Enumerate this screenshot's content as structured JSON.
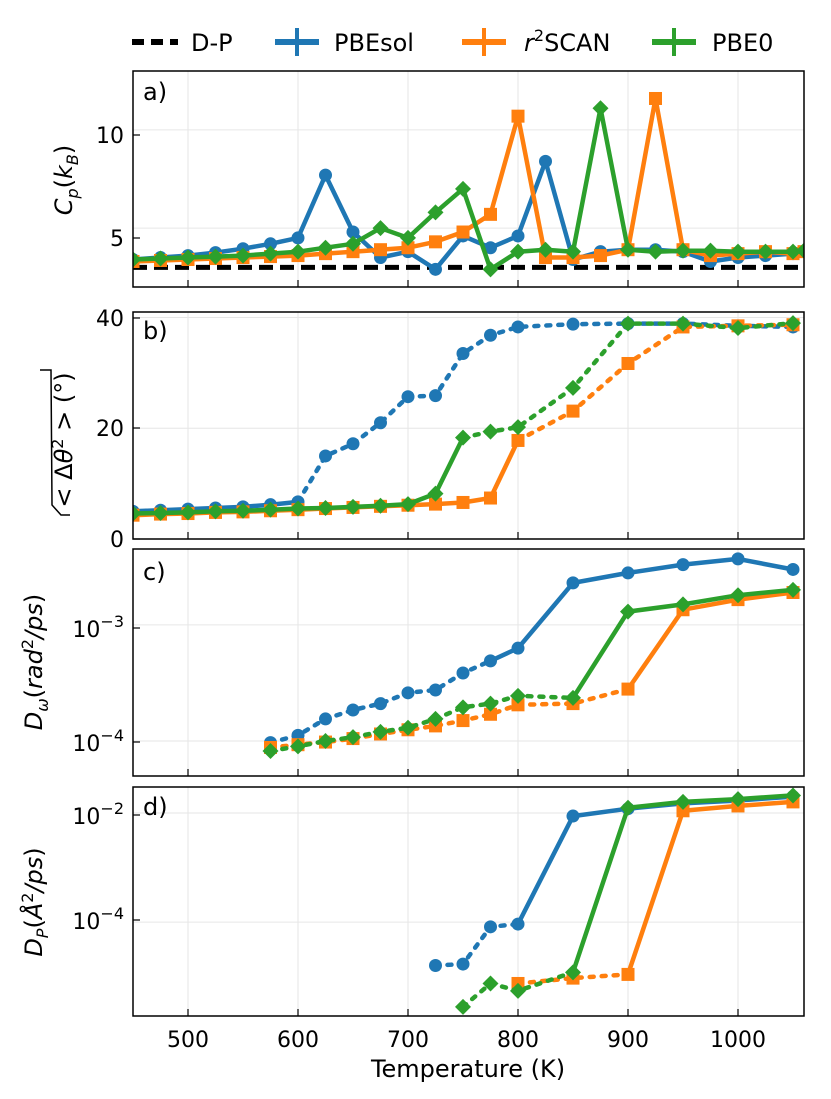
{
  "colors": {
    "pbesol": "#1f77b4",
    "r2scan": "#ff7f0e",
    "pbe0": "#2ca02c",
    "dp": "#000000",
    "grid": "#e6e6e6"
  },
  "legend": {
    "dp": "D-P",
    "pbesol": "PBEsol",
    "r2scan_pre": "r",
    "r2scan_sup": "2",
    "r2scan_post": "SCAN",
    "pbe0": "PBE0"
  },
  "xaxis": {
    "label": "Temperature (K)",
    "ticks": [
      500,
      600,
      700,
      800,
      900,
      1000
    ],
    "tick_labels": [
      "500",
      "600",
      "700",
      "800",
      "900",
      "1000"
    ]
  },
  "panels": {
    "a": {
      "tag": "a)",
      "ylabel": "C_p(k_B)",
      "tick_labels": [
        "5",
        "10"
      ]
    },
    "b": {
      "tag": "b)",
      "ylabel": "√<Δθ²> (°)",
      "tick_labels": [
        "0",
        "20",
        "40"
      ]
    },
    "c": {
      "tag": "c)",
      "ylabel": "D_ω(rad²/ps)",
      "tick_base": "10",
      "tick_exps": [
        "−4",
        "−3"
      ]
    },
    "d": {
      "tag": "d)",
      "ylabel": "D_P(Å²/ps)",
      "tick_base": "10",
      "tick_exps": [
        "−4",
        "−2"
      ]
    }
  },
  "chart_data": [
    {
      "id": "a",
      "type": "line",
      "title": "",
      "xlabel": "",
      "ylabel": "C_p(k_B)",
      "xlim": [
        450,
        1060
      ],
      "ylim": [
        2,
        13
      ],
      "yticks": [
        5,
        10
      ],
      "grid": true,
      "reference": {
        "name": "D-P",
        "value": 3,
        "style": "dashed"
      },
      "series": [
        {
          "name": "PBEsol",
          "key": "pbesol",
          "marker": "circle",
          "x": [
            450,
            475,
            500,
            525,
            550,
            575,
            600,
            625,
            650,
            675,
            700,
            725,
            750,
            775,
            800,
            825,
            850,
            875,
            900,
            925,
            950,
            975,
            1000,
            1025,
            1050,
            1060
          ],
          "y": [
            3.4,
            3.5,
            3.6,
            3.75,
            3.95,
            4.2,
            4.5,
            7.7,
            4.8,
            3.5,
            3.8,
            2.9,
            4.6,
            4.0,
            4.6,
            8.4,
            3.4,
            3.8,
            3.9,
            3.9,
            3.8,
            3.3,
            3.5,
            3.6,
            3.7,
            3.8
          ],
          "solid": [
            [
              450,
              1060
            ]
          ],
          "dotted": []
        },
        {
          "name": "r2SCAN",
          "key": "r2scan",
          "marker": "square",
          "x": [
            450,
            475,
            500,
            525,
            550,
            575,
            600,
            625,
            650,
            675,
            700,
            725,
            750,
            775,
            800,
            825,
            850,
            875,
            900,
            925,
            950,
            975,
            1000,
            1025,
            1050,
            1060
          ],
          "y": [
            3.3,
            3.35,
            3.4,
            3.45,
            3.5,
            3.55,
            3.6,
            3.7,
            3.8,
            3.9,
            4.0,
            4.3,
            4.8,
            5.7,
            10.7,
            3.5,
            3.5,
            3.6,
            3.9,
            11.6,
            3.9,
            3.6,
            3.7,
            3.8,
            3.7,
            3.8
          ],
          "solid": [
            [
              450,
              1060
            ]
          ],
          "dotted": []
        },
        {
          "name": "PBE0",
          "key": "pbe0",
          "marker": "diamond",
          "x": [
            450,
            475,
            500,
            525,
            550,
            575,
            600,
            625,
            650,
            675,
            700,
            725,
            750,
            775,
            800,
            825,
            850,
            875,
            900,
            925,
            950,
            975,
            1000,
            1025,
            1050,
            1060
          ],
          "y": [
            3.4,
            3.45,
            3.5,
            3.55,
            3.6,
            3.7,
            3.8,
            4.0,
            4.2,
            5.0,
            4.5,
            5.8,
            7.0,
            2.9,
            3.8,
            3.9,
            3.8,
            11.1,
            3.9,
            3.8,
            3.85,
            3.85,
            3.8,
            3.8,
            3.8,
            3.85
          ],
          "solid": [
            [
              450,
              1060
            ]
          ],
          "dotted": []
        }
      ]
    },
    {
      "id": "b",
      "type": "line",
      "title": "",
      "xlabel": "",
      "ylabel": "√<Δθ²> (°)",
      "xlim": [
        450,
        1060
      ],
      "ylim": [
        0,
        41
      ],
      "yticks": [
        0,
        20,
        40
      ],
      "grid": true,
      "series": [
        {
          "name": "PBEsol",
          "key": "pbesol",
          "marker": "circle",
          "x": [
            450,
            475,
            500,
            525,
            550,
            575,
            600,
            625,
            650,
            675,
            700,
            725,
            750,
            775,
            800,
            850,
            900,
            950,
            1000,
            1050
          ],
          "y": [
            5.0,
            5.2,
            5.4,
            5.6,
            5.8,
            6.2,
            6.7,
            15.0,
            17.2,
            21.0,
            25.7,
            25.9,
            33.5,
            36.8,
            38.3,
            38.8,
            38.9,
            38.9,
            38.5,
            38.3
          ],
          "solid": [
            [
              450,
              600
            ]
          ],
          "dotted": [
            [
              600,
              1050
            ]
          ]
        },
        {
          "name": "r2SCAN",
          "key": "r2scan",
          "marker": "square",
          "x": [
            450,
            475,
            500,
            525,
            550,
            575,
            600,
            625,
            650,
            675,
            700,
            725,
            750,
            775,
            800,
            850,
            900,
            950,
            1000,
            1050
          ],
          "y": [
            4.3,
            4.5,
            4.6,
            4.8,
            4.9,
            5.1,
            5.3,
            5.5,
            5.7,
            5.9,
            6.1,
            6.3,
            6.6,
            7.4,
            17.8,
            23.1,
            31.7,
            38.3,
            38.5,
            38.7
          ],
          "solid": [
            [
              450,
              800
            ]
          ],
          "dotted": [
            [
              800,
              1050
            ]
          ]
        },
        {
          "name": "PBE0",
          "key": "pbe0",
          "marker": "diamond",
          "x": [
            450,
            475,
            500,
            525,
            550,
            575,
            600,
            625,
            650,
            675,
            700,
            725,
            750,
            775,
            800,
            850,
            900,
            950,
            1000,
            1050
          ],
          "y": [
            4.6,
            4.7,
            4.8,
            5.0,
            5.1,
            5.3,
            5.5,
            5.6,
            5.8,
            6.0,
            6.3,
            8.2,
            18.3,
            19.4,
            20.2,
            27.3,
            38.9,
            38.9,
            38.1,
            39.0
          ],
          "solid": [
            [
              450,
              750
            ]
          ],
          "dotted": [
            [
              750,
              1050
            ]
          ]
        }
      ]
    },
    {
      "id": "c",
      "type": "line",
      "title": "",
      "xlabel": "",
      "ylabel": "D_ω(rad²/ps)",
      "yscale": "log",
      "xlim": [
        450,
        1060
      ],
      "ylim": [
        5e-05,
        0.0045
      ],
      "yticks": [
        0.0001,
        0.001
      ],
      "grid": true,
      "series": [
        {
          "name": "PBEsol",
          "key": "pbesol",
          "marker": "circle",
          "x": [
            575,
            600,
            625,
            650,
            675,
            700,
            725,
            750,
            775,
            800,
            850,
            900,
            950,
            1000,
            1050
          ],
          "y": [
            9.7e-05,
            0.000112,
            0.000155,
            0.000185,
            0.00021,
            0.00026,
            0.000275,
            0.000385,
            0.00049,
            0.00063,
            0.0023,
            0.0028,
            0.0033,
            0.0037,
            0.003
          ],
          "solid": [
            [
              775,
              1050
            ]
          ],
          "dotted": [
            [
              575,
              775
            ]
          ]
        },
        {
          "name": "r2SCAN",
          "key": "r2scan",
          "marker": "square",
          "x": [
            575,
            600,
            625,
            650,
            675,
            700,
            725,
            750,
            775,
            800,
            850,
            900,
            950,
            1000,
            1050
          ],
          "y": [
            8.8e-05,
            9.3e-05,
            9.8e-05,
            0.000105,
            0.000115,
            0.000125,
            0.000135,
            0.00015,
            0.00017,
            0.000205,
            0.00021,
            0.00028,
            0.00135,
            0.00165,
            0.0019
          ],
          "solid": [
            [
              900,
              1050
            ]
          ],
          "dotted": [
            [
              575,
              900
            ]
          ]
        },
        {
          "name": "PBE0",
          "key": "pbe0",
          "marker": "diamond",
          "x": [
            575,
            600,
            625,
            650,
            675,
            700,
            725,
            750,
            775,
            800,
            850,
            900,
            950,
            1000,
            1050
          ],
          "y": [
            8.2e-05,
            9e-05,
            0.0001,
            0.000108,
            0.00012,
            0.00013,
            0.000155,
            0.000195,
            0.00021,
            0.000245,
            0.000235,
            0.0013,
            0.0015,
            0.0018,
            0.002
          ],
          "solid": [
            [
              850,
              1050
            ]
          ],
          "dotted": [
            [
              575,
              850
            ]
          ]
        }
      ]
    },
    {
      "id": "d",
      "type": "line",
      "title": "",
      "xlabel": "Temperature (K)",
      "ylabel": "D_P(Å²/ps)",
      "yscale": "log",
      "xlim": [
        450,
        1060
      ],
      "ylim": [
        1.9e-06,
        0.03
      ],
      "yticks": [
        0.0001,
        0.01
      ],
      "grid": true,
      "series": [
        {
          "name": "PBEsol",
          "key": "pbesol",
          "marker": "circle",
          "x": [
            725,
            750,
            775,
            800,
            850,
            900,
            950,
            1000,
            1050
          ],
          "y": [
            1.6e-05,
            1.7e-05,
            8.2e-05,
            9.2e-05,
            0.0088,
            0.012,
            0.015,
            0.017,
            0.02
          ],
          "solid": [
            [
              800,
              1050
            ]
          ],
          "dotted": [
            [
              725,
              800
            ]
          ]
        },
        {
          "name": "r2SCAN",
          "key": "r2scan",
          "marker": "square",
          "x": [
            800,
            850,
            900,
            950,
            1000,
            1050
          ],
          "y": [
            7.5e-06,
            9.4e-06,
            1.1e-05,
            0.011,
            0.0135,
            0.016
          ],
          "solid": [
            [
              900,
              1050
            ]
          ],
          "dotted": [
            [
              800,
              900
            ]
          ]
        },
        {
          "name": "PBE0",
          "key": "pbe0",
          "marker": "diamond",
          "x": [
            750,
            775,
            800,
            850,
            900,
            950,
            1000,
            1050
          ],
          "y": [
            2.8e-06,
            7.5e-06,
            5.5e-06,
            1.2e-05,
            0.0125,
            0.016,
            0.018,
            0.021
          ],
          "solid": [
            [
              850,
              1050
            ]
          ],
          "dotted": [
            [
              750,
              850
            ]
          ]
        }
      ]
    }
  ]
}
